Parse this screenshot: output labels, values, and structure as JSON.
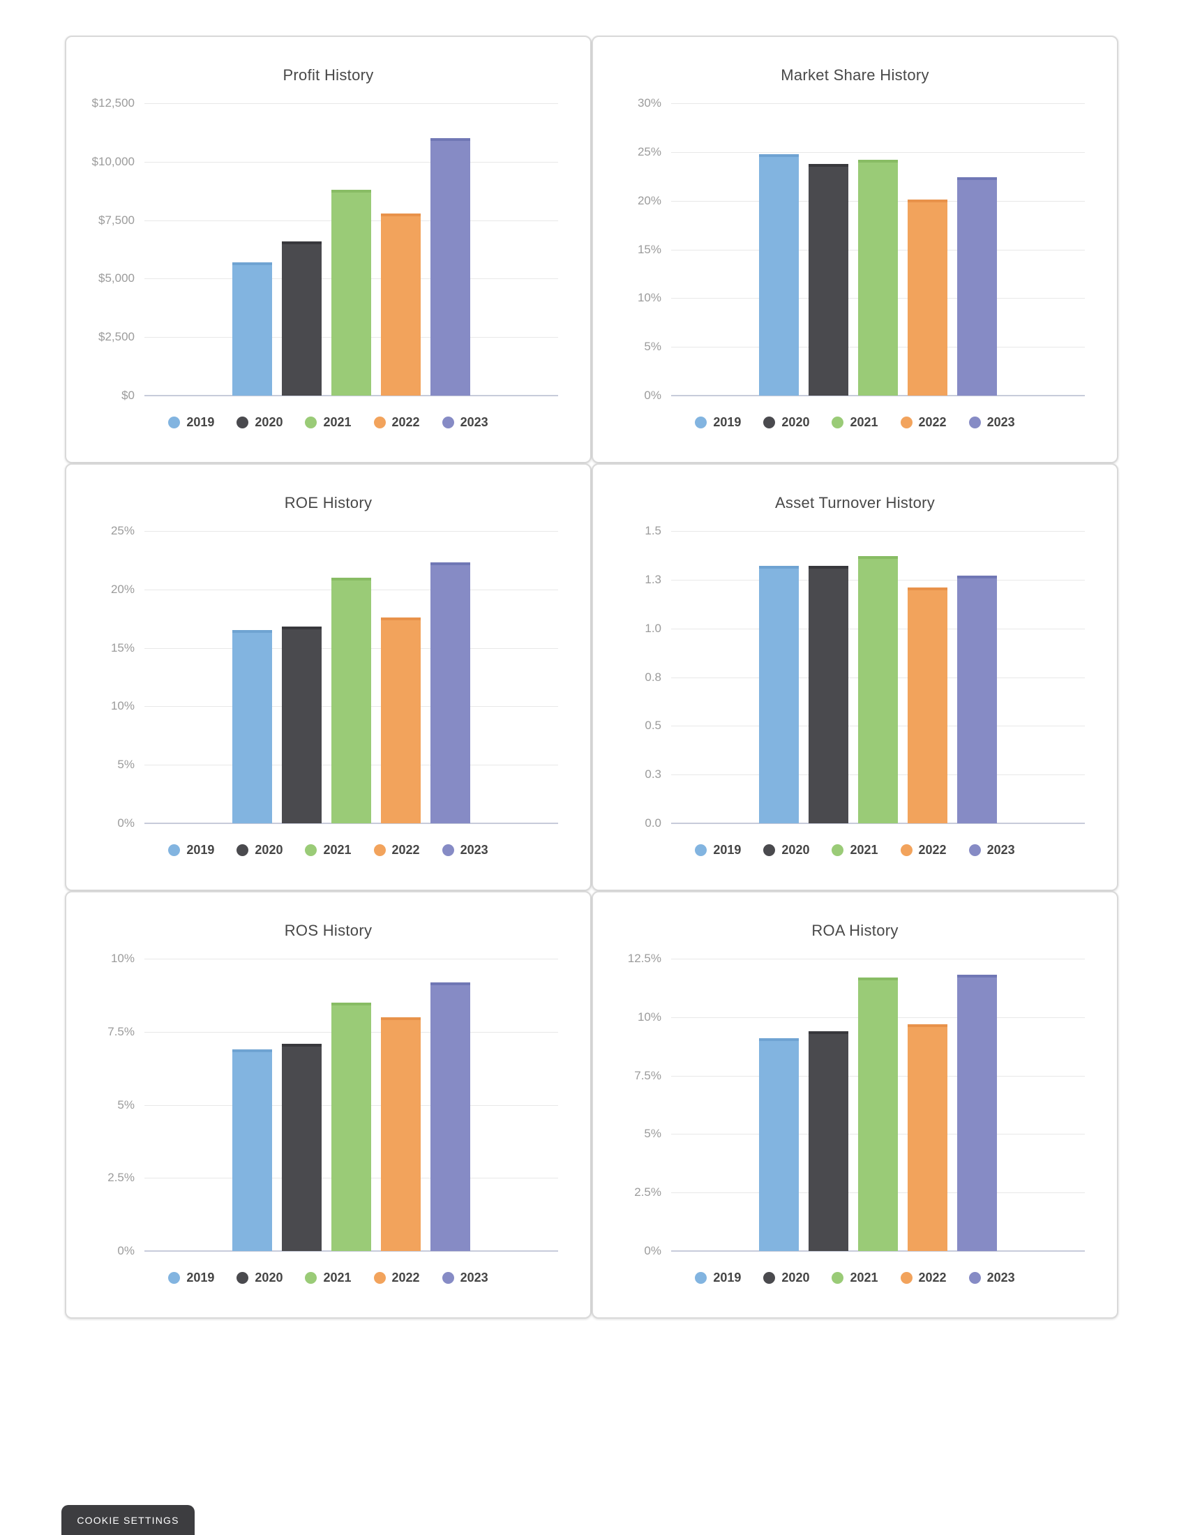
{
  "page": {
    "background": "#ffffff"
  },
  "cookie_button": {
    "label": "COOKIE SETTINGS",
    "background": "#3D3D40",
    "text_color": "#ffffff"
  },
  "legend_years": [
    "2019",
    "2020",
    "2021",
    "2022",
    "2023"
  ],
  "series_colors": [
    "#82B4E0",
    "#4A4A4E",
    "#9ACB77",
    "#F2A35C",
    "#868BC5"
  ],
  "series_border_colors": [
    "#6FA3D2",
    "#38383C",
    "#88BC64",
    "#E8924A",
    "#7077B5"
  ],
  "grid_color": "#E8E8E8",
  "axis_line_color": "#C7CBDA",
  "tick_label_color": "#9B9B9B",
  "title_color": "#484848",
  "chart_data": [
    {
      "type": "bar",
      "title": "Profit History",
      "categories": [
        "2019",
        "2020",
        "2021",
        "2022",
        "2023"
      ],
      "values": [
        5700,
        6600,
        8800,
        7800,
        11000
      ],
      "ylim": [
        0,
        12500
      ],
      "yticks": [
        {
          "value": 12500,
          "label": "$12,500"
        },
        {
          "value": 10000,
          "label": "$10,000"
        },
        {
          "value": 7500,
          "label": "$7,500"
        },
        {
          "value": 5000,
          "label": "$5,000"
        },
        {
          "value": 2500,
          "label": "$2,500"
        },
        {
          "value": 0,
          "label": "$0"
        }
      ],
      "xlabel": "",
      "ylabel": "",
      "grid": true,
      "legend_position": "bottom"
    },
    {
      "type": "bar",
      "title": "Market Share History",
      "categories": [
        "2019",
        "2020",
        "2021",
        "2022",
        "2023"
      ],
      "values": [
        24.8,
        23.8,
        24.2,
        20.1,
        22.4
      ],
      "ylim": [
        0,
        30
      ],
      "yticks": [
        {
          "value": 30,
          "label": "30%"
        },
        {
          "value": 25,
          "label": "25%"
        },
        {
          "value": 20,
          "label": "20%"
        },
        {
          "value": 15,
          "label": "15%"
        },
        {
          "value": 10,
          "label": "10%"
        },
        {
          "value": 5,
          "label": "5%"
        },
        {
          "value": 0,
          "label": "0%"
        }
      ],
      "xlabel": "",
      "ylabel": "",
      "grid": true,
      "legend_position": "bottom"
    },
    {
      "type": "bar",
      "title": "ROE History",
      "categories": [
        "2019",
        "2020",
        "2021",
        "2022",
        "2023"
      ],
      "values": [
        16.5,
        16.8,
        21.0,
        17.6,
        22.3
      ],
      "ylim": [
        0,
        25
      ],
      "yticks": [
        {
          "value": 25,
          "label": "25%"
        },
        {
          "value": 20,
          "label": "20%"
        },
        {
          "value": 15,
          "label": "15%"
        },
        {
          "value": 10,
          "label": "10%"
        },
        {
          "value": 5,
          "label": "5%"
        },
        {
          "value": 0,
          "label": "0%"
        }
      ],
      "xlabel": "",
      "ylabel": "",
      "grid": true,
      "legend_position": "bottom"
    },
    {
      "type": "bar",
      "title": "Asset Turnover History",
      "categories": [
        "2019",
        "2020",
        "2021",
        "2022",
        "2023"
      ],
      "values": [
        1.32,
        1.32,
        1.37,
        1.21,
        1.27
      ],
      "ylim": [
        0,
        1.5
      ],
      "yticks": [
        {
          "value": 1.5,
          "label": "1.5"
        },
        {
          "value": 1.25,
          "label": "1.3"
        },
        {
          "value": 1.0,
          "label": "1.0"
        },
        {
          "value": 0.75,
          "label": "0.8"
        },
        {
          "value": 0.5,
          "label": "0.5"
        },
        {
          "value": 0.25,
          "label": "0.3"
        },
        {
          "value": 0,
          "label": "0.0"
        }
      ],
      "xlabel": "",
      "ylabel": "",
      "grid": true,
      "legend_position": "bottom"
    },
    {
      "type": "bar",
      "title": "ROS History",
      "categories": [
        "2019",
        "2020",
        "2021",
        "2022",
        "2023"
      ],
      "values": [
        6.9,
        7.1,
        8.5,
        8.0,
        9.2
      ],
      "ylim": [
        0,
        10
      ],
      "yticks": [
        {
          "value": 10,
          "label": "10%"
        },
        {
          "value": 7.5,
          "label": "7.5%"
        },
        {
          "value": 5,
          "label": "5%"
        },
        {
          "value": 2.5,
          "label": "2.5%"
        },
        {
          "value": 0,
          "label": "0%"
        }
      ],
      "xlabel": "",
      "ylabel": "",
      "grid": true,
      "legend_position": "bottom"
    },
    {
      "type": "bar",
      "title": "ROA History",
      "categories": [
        "2019",
        "2020",
        "2021",
        "2022",
        "2023"
      ],
      "values": [
        9.1,
        9.4,
        11.7,
        9.7,
        11.8
      ],
      "ylim": [
        0,
        12.5
      ],
      "yticks": [
        {
          "value": 12.5,
          "label": "12.5%"
        },
        {
          "value": 10,
          "label": "10%"
        },
        {
          "value": 7.5,
          "label": "7.5%"
        },
        {
          "value": 5,
          "label": "5%"
        },
        {
          "value": 2.5,
          "label": "2.5%"
        },
        {
          "value": 0,
          "label": "0%"
        }
      ],
      "xlabel": "",
      "ylabel": "",
      "grid": true,
      "legend_position": "bottom"
    }
  ]
}
